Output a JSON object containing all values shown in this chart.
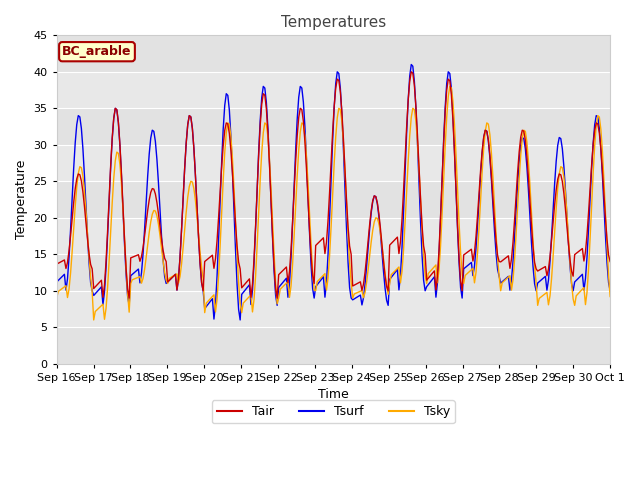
{
  "title": "Temperatures",
  "xlabel": "Time",
  "ylabel": "Temperature",
  "ylim": [
    0,
    45
  ],
  "fig_bg": "#ffffff",
  "plot_bg": "#e8e8e8",
  "line_colors": {
    "Tair": "#cc0000",
    "Tsurf": "#0000ee",
    "Tsky": "#ffaa00"
  },
  "line_widths": {
    "Tair": 1.0,
    "Tsurf": 1.0,
    "Tsky": 1.0
  },
  "legend_label": "BC_arable",
  "legend_bg": "#ffffcc",
  "legend_border": "#aa0000",
  "x_tick_labels": [
    "Sep 16",
    "Sep 17",
    "Sep 18",
    "Sep 19",
    "Sep 20",
    "Sep 21",
    "Sep 22",
    "Sep 23",
    "Sep 24",
    "Sep 25",
    "Sep 26",
    "Sep 27",
    "Sep 28",
    "Sep 29",
    "Sep 30",
    "Oct 1"
  ],
  "yticks": [
    0,
    5,
    10,
    15,
    20,
    25,
    30,
    35,
    40,
    45
  ],
  "title_fontsize": 11,
  "axis_label_fontsize": 9,
  "tick_fontsize": 8,
  "legend_fontsize": 9,
  "n_days": 15,
  "tair_max": [
    26,
    35,
    24,
    34,
    33,
    37,
    35,
    39,
    23,
    40,
    39,
    32,
    32,
    26,
    33
  ],
  "tair_min": [
    13,
    9,
    14,
    10,
    13,
    9,
    11,
    15,
    10,
    15,
    10,
    14,
    13,
    12,
    14
  ],
  "tsurf_max": [
    34,
    35,
    32,
    34,
    37,
    38,
    38,
    40,
    23,
    41,
    40,
    32,
    31,
    31,
    34
  ],
  "tsurf_min": [
    10,
    8,
    11,
    10,
    6,
    8,
    9,
    9,
    8,
    10,
    9,
    12,
    10,
    10,
    10
  ],
  "tsky_max": [
    27,
    29,
    21,
    25,
    33,
    33,
    33,
    35,
    20,
    35,
    38,
    33,
    32,
    27,
    34
  ],
  "tsky_min": [
    9,
    6,
    11,
    11,
    7,
    7,
    9,
    10,
    9,
    11,
    11,
    11,
    10,
    8,
    8
  ]
}
